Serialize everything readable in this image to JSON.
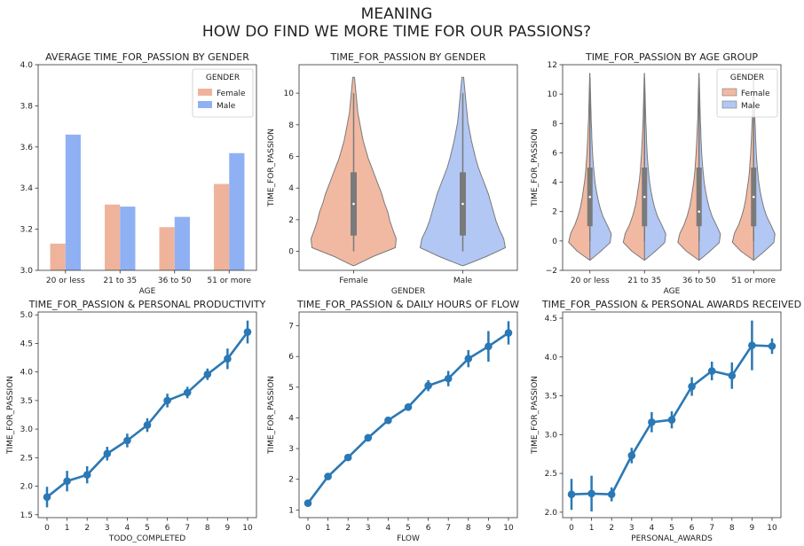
{
  "figure": {
    "title_line1": "MEANING",
    "title_line2": "HOW DO FIND WE MORE TIME FOR OUR PASSIONS?"
  },
  "colors": {
    "female": "#efb39c",
    "male": "#8fb1f4",
    "female_violin": "#f2b9a2",
    "male_violin": "#b3c7f5",
    "line": "#2a78b5",
    "box": "#7a7a7a",
    "frame": "#333333"
  },
  "chart_data": [
    {
      "type": "bar",
      "title": "AVERAGE TIME_FOR_PASSION BY GENDER",
      "xlabel": "AGE",
      "ylabel": "",
      "categories": [
        "20 or less",
        "21 to 35",
        "36 to 50",
        "51 or more"
      ],
      "ylim": [
        3.0,
        4.0
      ],
      "yticks": [
        "3.0",
        "3.2",
        "3.4",
        "3.6",
        "3.8",
        "4.0"
      ],
      "legend_title": "GENDER",
      "legend_placement": "top-right",
      "series": [
        {
          "name": "Female",
          "values": [
            3.13,
            3.32,
            3.21,
            3.42
          ]
        },
        {
          "name": "Male",
          "values": [
            3.66,
            3.31,
            3.26,
            3.57
          ]
        }
      ]
    },
    {
      "type": "violin",
      "title": "TIME_FOR_PASSION BY GENDER",
      "xlabel": "GENDER",
      "ylabel": "TIME_FOR_PASSION",
      "categories": [
        "Female",
        "Male"
      ],
      "ylim": [
        -1.2,
        11.8
      ],
      "yticks": [
        "0",
        "2",
        "4",
        "6",
        "8",
        "10"
      ],
      "box": [
        {
          "q1": 1,
          "median": 3,
          "q3": 5,
          "min": 0,
          "max": 10
        },
        {
          "q1": 1,
          "median": 3,
          "q3": 5,
          "min": 0,
          "max": 10
        }
      ]
    },
    {
      "type": "violin",
      "title": "TIME_FOR_PASSION BY AGE GROUP",
      "xlabel": "AGE",
      "ylabel": "TIME_FOR_PASSION",
      "categories": [
        "20 or less",
        "21 to 35",
        "36 to 50",
        "51 or more"
      ],
      "ylim": [
        -2,
        12
      ],
      "yticks": [
        "−2",
        "0",
        "2",
        "4",
        "6",
        "8",
        "10",
        "12"
      ],
      "legend_title": "GENDER",
      "legend_placement": "top-right",
      "series": [
        {
          "name": "Female"
        },
        {
          "name": "Male"
        }
      ],
      "box": [
        {
          "q1": 1,
          "median": 3,
          "q3": 5,
          "min": 0,
          "max": 10
        },
        {
          "q1": 1,
          "median": 3,
          "q3": 5,
          "min": 0,
          "max": 10
        },
        {
          "q1": 1,
          "median": 2,
          "q3": 5,
          "min": 0,
          "max": 10
        },
        {
          "q1": 1,
          "median": 3,
          "q3": 5,
          "min": 0,
          "max": 10
        }
      ]
    },
    {
      "type": "line",
      "title": "TIME_FOR_PASSION & PERSONAL PRODUCTIVITY",
      "xlabel": "TODO_COMPLETED",
      "ylabel": "TIME_FOR_PASSION",
      "x": [
        0,
        1,
        2,
        3,
        4,
        5,
        6,
        7,
        8,
        9,
        10
      ],
      "values": [
        1.81,
        2.09,
        2.2,
        2.57,
        2.8,
        3.07,
        3.5,
        3.64,
        3.96,
        4.23,
        4.7
      ],
      "err": [
        0.18,
        0.18,
        0.15,
        0.12,
        0.12,
        0.12,
        0.12,
        0.1,
        0.1,
        0.18,
        0.2
      ],
      "ylim": [
        1.45,
        5.05
      ],
      "yticks": [
        "1.5",
        "2.0",
        "2.5",
        "3.0",
        "3.5",
        "4.0",
        "4.5",
        "5.0"
      ]
    },
    {
      "type": "line",
      "title": "TIME_FOR_PASSION & DAILY HOURS OF FLOW",
      "xlabel": "FLOW",
      "ylabel": "TIME_FOR_PASSION",
      "x": [
        0,
        1,
        2,
        3,
        4,
        5,
        6,
        7,
        8,
        9,
        10
      ],
      "values": [
        1.22,
        2.09,
        2.71,
        3.35,
        3.92,
        4.35,
        5.05,
        5.28,
        5.93,
        6.33,
        6.77
      ],
      "err": [
        0.08,
        0.08,
        0.1,
        0.12,
        0.1,
        0.12,
        0.18,
        0.25,
        0.28,
        0.5,
        0.38
      ],
      "ylim": [
        0.75,
        7.45
      ],
      "yticks": [
        "1",
        "2",
        "3",
        "4",
        "5",
        "6",
        "7"
      ]
    },
    {
      "type": "line",
      "title": "TIME_FOR_PASSION & PERSONAL AWARDS RECEIVED",
      "xlabel": "PERSONAL_AWARDS",
      "ylabel": "TIME_FOR_PASSION",
      "x": [
        0,
        1,
        2,
        3,
        4,
        5,
        6,
        7,
        8,
        9,
        10
      ],
      "values": [
        2.23,
        2.24,
        2.23,
        2.73,
        3.16,
        3.19,
        3.62,
        3.82,
        3.76,
        4.15,
        4.14
      ],
      "err": [
        0.2,
        0.23,
        0.09,
        0.1,
        0.13,
        0.11,
        0.12,
        0.12,
        0.17,
        0.32,
        0.1
      ],
      "ylim": [
        1.93,
        4.58
      ],
      "yticks": [
        "2.0",
        "2.5",
        "3.0",
        "3.5",
        "4.0",
        "4.5"
      ]
    }
  ]
}
